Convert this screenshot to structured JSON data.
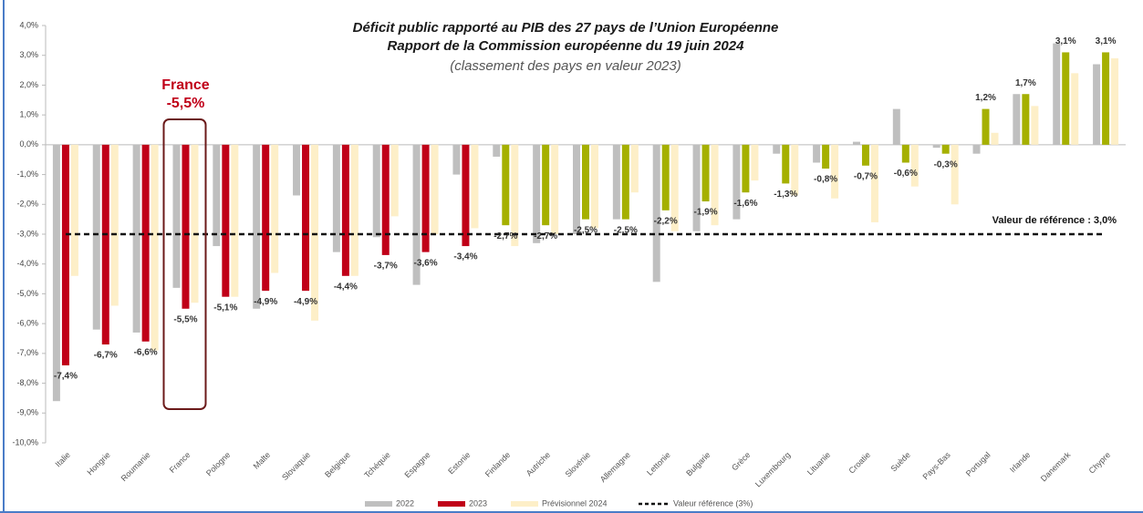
{
  "chart_data": {
    "type": "bar",
    "title": "Déficit public rapporté au PIB des 27 pays de l’Union Européenne",
    "subtitle": "Rapport de la Commission européenne du 19 juin 2024",
    "note": "(classement des pays en valeur 2023)",
    "categories": [
      "Italie",
      "Hongrie",
      "Roumanie",
      "France",
      "Pologne",
      "Malte",
      "Slovaquie",
      "Belgique",
      "Tchéquie",
      "Espagne",
      "Estonie",
      "Finlande",
      "Autriche",
      "Slovénie",
      "Allemagne",
      "Lettonie",
      "Bulgarie",
      "Grèce",
      "Luxembourg",
      "Lituanie",
      "Croatie",
      "Suède",
      "Pays-Bas",
      "Portugal",
      "Irlande",
      "Danemark",
      "Chypre"
    ],
    "series": [
      {
        "name": "2022",
        "color": "#bfbfbf",
        "values": [
          -8.6,
          -6.2,
          -6.3,
          -4.8,
          -3.4,
          -5.5,
          -1.7,
          -3.6,
          -3.1,
          -4.7,
          -1.0,
          -0.4,
          -3.3,
          -3.0,
          -2.5,
          -4.6,
          -2.9,
          -2.5,
          -0.3,
          -0.6,
          0.1,
          1.2,
          -0.1,
          -0.3,
          1.7,
          3.4,
          2.7
        ]
      },
      {
        "name": "2023",
        "color": "#c00018",
        "point_colors": [
          "#c00018",
          "#c00018",
          "#c00018",
          "#c00018",
          "#c00018",
          "#c00018",
          "#c00018",
          "#c00018",
          "#c00018",
          "#c00018",
          "#c00018",
          "#a5b000",
          "#a5b000",
          "#a5b000",
          "#a5b000",
          "#a5b000",
          "#a5b000",
          "#a5b000",
          "#a5b000",
          "#a5b000",
          "#a5b000",
          "#a5b000",
          "#a5b000",
          "#a5b000",
          "#a5b000",
          "#a5b000",
          "#a5b000"
        ],
        "values": [
          -7.4,
          -6.7,
          -6.6,
          -5.5,
          -5.1,
          -4.9,
          -4.9,
          -4.4,
          -3.7,
          -3.6,
          -3.4,
          -2.7,
          -2.7,
          -2.5,
          -2.5,
          -2.2,
          -1.9,
          -1.6,
          -1.3,
          -0.8,
          -0.7,
          -0.6,
          -0.3,
          1.2,
          1.7,
          3.1,
          3.1
        ],
        "value_labels": [
          "-7,4%",
          "-6,7%",
          "-6,6%",
          "-5,5%",
          "-5,1%",
          "-4,9%",
          "-4,9%",
          "-4,4%",
          "-3,7%",
          "-3,6%",
          "-3,4%",
          "-2,7%",
          "-2,7%",
          "-2,5%",
          "-2,5%",
          "-2,2%",
          "-1,9%",
          "-1,6%",
          "-1,3%",
          "-0,8%",
          "-0,7%",
          "-0,6%",
          "-0,3%",
          "1,2%",
          "1,7%",
          "3,1%",
          "3,1%"
        ]
      },
      {
        "name": "Prévisionnel 2024",
        "color": "#fdefc8",
        "values": [
          -4.4,
          -5.4,
          -6.9,
          -5.3,
          -5.1,
          -4.3,
          -5.9,
          -4.4,
          -2.4,
          -3.0,
          -2.8,
          -3.4,
          -3.0,
          -2.8,
          -1.6,
          -2.9,
          -2.7,
          -1.2,
          -1.7,
          -1.8,
          -2.6,
          -1.4,
          -2.0,
          0.4,
          1.3,
          2.4,
          2.9
        ]
      }
    ],
    "reference": {
      "value": -3,
      "label": "Valeur de référence : 3,0%",
      "legend": "Valeur référence (3%)"
    },
    "annotation": {
      "text": "France",
      "value_label": "-5,5%",
      "category": "France"
    },
    "ylim": [
      -10,
      4
    ],
    "yticks": [
      {
        "value": 4,
        "label": "4,0%"
      },
      {
        "value": 3,
        "label": "3,0%"
      },
      {
        "value": 2,
        "label": "2,0%"
      },
      {
        "value": 1,
        "label": "1,0%"
      },
      {
        "value": 0,
        "label": "0,0%"
      },
      {
        "value": -1,
        "label": "-1,0%"
      },
      {
        "value": -2,
        "label": "-2,0%"
      },
      {
        "value": -3,
        "label": "-3,0%"
      },
      {
        "value": -4,
        "label": "-4,0%"
      },
      {
        "value": -5,
        "label": "-5,0%"
      },
      {
        "value": -6,
        "label": "-6,0%"
      },
      {
        "value": -7,
        "label": "-7,0%"
      },
      {
        "value": -8,
        "label": "-8,0%"
      },
      {
        "value": -9,
        "label": "-9,0%"
      },
      {
        "value": -10,
        "label": "-10,0%"
      }
    ],
    "grid": false
  }
}
